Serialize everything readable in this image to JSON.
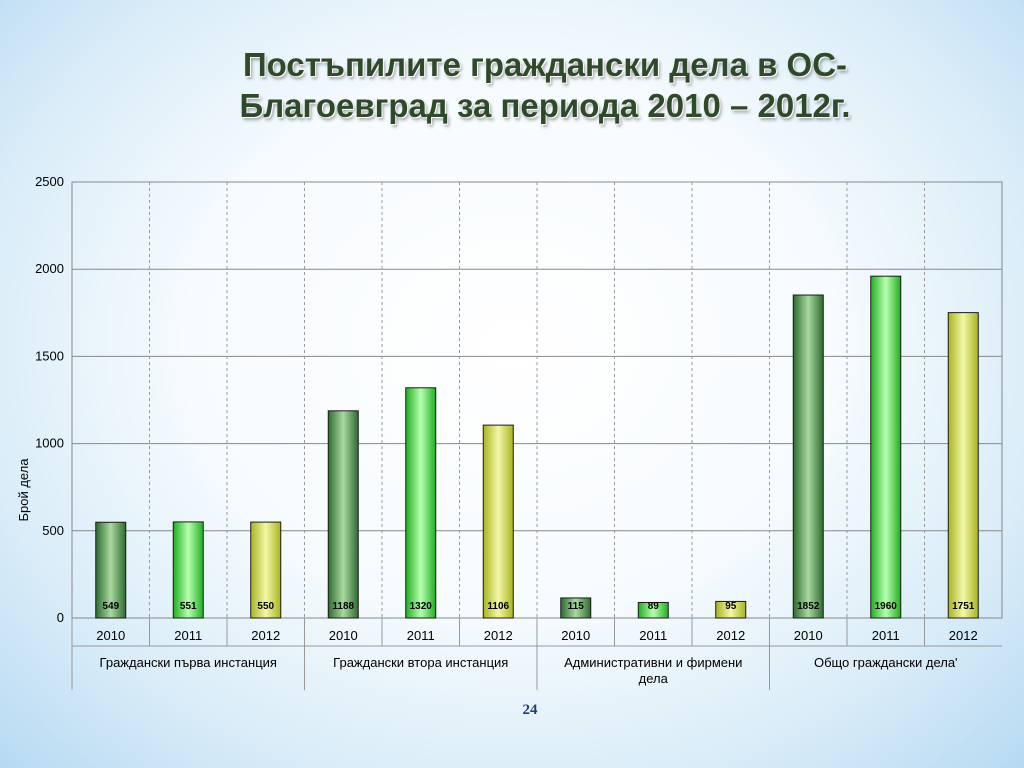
{
  "slide": {
    "title_line1": "Постъпилите граждански дела в ОС-",
    "title_line2": "Благоевград  за периода 2010 – 2012г.",
    "page_number": "24"
  },
  "chart_data": {
    "type": "bar",
    "title": "",
    "ylabel": "Брой дела",
    "ylim": [
      0,
      2500
    ],
    "yticks": [
      0,
      500,
      1000,
      1500,
      2000,
      2500
    ],
    "grid": true,
    "legend": "none",
    "groups": [
      {
        "name": "Граждански първа инстанция",
        "lines": [
          "Граждански първа инстанция"
        ],
        "categories": [
          "2010",
          "2011",
          "2012"
        ],
        "values": [
          549,
          551,
          550
        ]
      },
      {
        "name": "Граждански втора инстанция",
        "lines": [
          "Граждански втора инстанция"
        ],
        "categories": [
          "2010",
          "2011",
          "2012"
        ],
        "values": [
          1188,
          1320,
          1106
        ]
      },
      {
        "name": "Административни и фирмени дела",
        "lines": [
          "Административни и фирмени",
          "дела"
        ],
        "categories": [
          "2010",
          "2011",
          "2012"
        ],
        "values": [
          115,
          89,
          95
        ]
      },
      {
        "name": "Общо граждански дела'",
        "lines": [
          "Общо граждански дела'"
        ],
        "categories": [
          "2010",
          "2011",
          "2012"
        ],
        "values": [
          1852,
          1960,
          1751
        ]
      }
    ],
    "year_colors": {
      "2010": "#3a8a3a",
      "2011": "#33d633",
      "2012": "#c9d430"
    }
  }
}
